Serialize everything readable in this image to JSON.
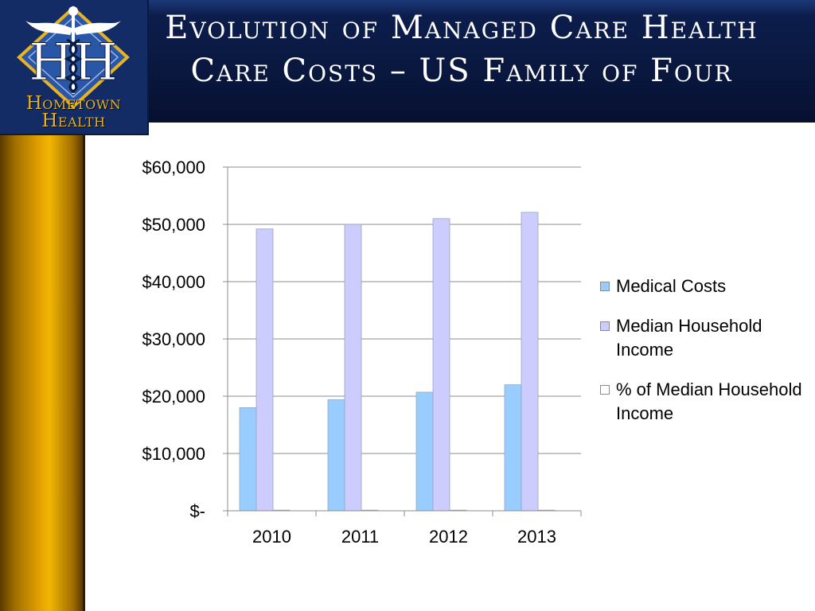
{
  "slide": {
    "title": "Evolution of Managed Care Health Care Costs – US Family of Four"
  },
  "logo": {
    "line1": "Hometown",
    "line2": "Health",
    "icon": "caduceus-shield-icon"
  },
  "colors": {
    "medical": "#99ccff",
    "income": "#ccccff",
    "pct": "#ffffff",
    "gold": "#f2b705",
    "navy": "#0a1840"
  },
  "chart_data": {
    "type": "bar",
    "title": "",
    "xlabel": "",
    "ylabel": "",
    "categories": [
      "2010",
      "2011",
      "2012",
      "2013"
    ],
    "ylim": [
      0,
      60000
    ],
    "yticks": [
      0,
      10000,
      20000,
      30000,
      40000,
      50000,
      60000
    ],
    "ytick_labels": [
      "$-",
      "$10,000",
      "$20,000",
      "$30,000",
      "$40,000",
      "$50,000",
      "$60,000"
    ],
    "grid": true,
    "legend_position": "right",
    "series": [
      {
        "name": "Medical Costs",
        "values": [
          18000,
          19400,
          20700,
          22000
        ],
        "color": "#99ccff"
      },
      {
        "name": "Median Household Income",
        "values": [
          49200,
          50000,
          51000,
          52100
        ],
        "color": "#ccccff"
      },
      {
        "name": "% of Median Household Income",
        "values": [
          0.37,
          0.39,
          0.41,
          0.42
        ],
        "color": "#ffffff"
      }
    ]
  }
}
